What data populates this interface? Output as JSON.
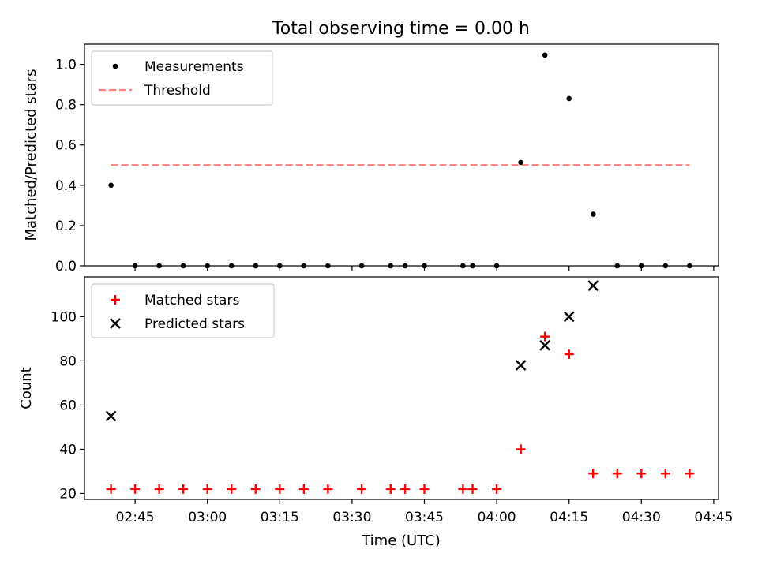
{
  "chart_data": [
    {
      "type": "scatter",
      "title": "Total observing time = 0.00 h",
      "xlabel": "",
      "ylabel": "Matched/Predicted stars",
      "ylim": [
        0,
        1.1
      ],
      "yticks": [
        "0.0",
        "0.2",
        "0.4",
        "0.6",
        "0.8",
        "1.0"
      ],
      "legend_placement": "top-left",
      "series": [
        {
          "name": "Measurements",
          "color": "#000000",
          "marker": "dot",
          "x": [
            "02:40",
            "02:45",
            "02:50",
            "02:55",
            "03:00",
            "03:05",
            "03:10",
            "03:15",
            "03:20",
            "03:25",
            "03:32",
            "03:38",
            "03:41",
            "03:45",
            "03:53",
            "03:55",
            "04:00",
            "04:05",
            "04:10",
            "04:15",
            "04:20",
            "04:25",
            "04:30",
            "04:35",
            "04:40"
          ],
          "values": [
            0.4,
            0,
            0,
            0,
            0,
            0,
            0,
            0,
            0,
            0,
            0,
            0,
            0,
            0,
            0,
            0,
            0,
            0.513,
            1.046,
            0.83,
            0.256,
            0,
            0,
            0,
            0
          ]
        },
        {
          "name": "Threshold",
          "color": "#ff7f7f",
          "style": "dashed",
          "x": [
            "02:40",
            "04:40"
          ],
          "values": [
            0.5,
            0.5
          ]
        }
      ]
    },
    {
      "type": "scatter",
      "xlabel": "Time (UTC)",
      "ylabel": "Count",
      "ylim": [
        17.3,
        118
      ],
      "xlim": [
        "02:34:30",
        "04:46:00"
      ],
      "yticks": [
        "20",
        "40",
        "60",
        "80",
        "100"
      ],
      "xticks": [
        "02:45",
        "03:00",
        "03:15",
        "03:30",
        "03:45",
        "04:00",
        "04:15",
        "04:30",
        "04:45"
      ],
      "legend_placement": "top-left",
      "series": [
        {
          "name": "Matched stars",
          "color": "#ff0000",
          "marker": "plus",
          "x": [
            "02:40",
            "02:45",
            "02:50",
            "02:55",
            "03:00",
            "03:05",
            "03:10",
            "03:15",
            "03:20",
            "03:25",
            "03:32",
            "03:38",
            "03:41",
            "03:45",
            "03:53",
            "03:55",
            "04:00",
            "04:05",
            "04:10",
            "04:15",
            "04:20",
            "04:25",
            "04:30",
            "04:35",
            "04:40"
          ],
          "values": [
            22,
            22,
            22,
            22,
            22,
            22,
            22,
            22,
            22,
            22,
            22,
            22,
            22,
            22,
            22,
            22,
            22,
            40,
            91,
            83,
            29,
            29,
            29,
            29,
            29
          ]
        },
        {
          "name": "Predicted stars",
          "color": "#000000",
          "marker": "x",
          "x": [
            "02:40",
            "04:05",
            "04:10",
            "04:15",
            "04:20"
          ],
          "values": [
            55,
            78,
            87,
            100,
            114
          ]
        }
      ]
    }
  ]
}
